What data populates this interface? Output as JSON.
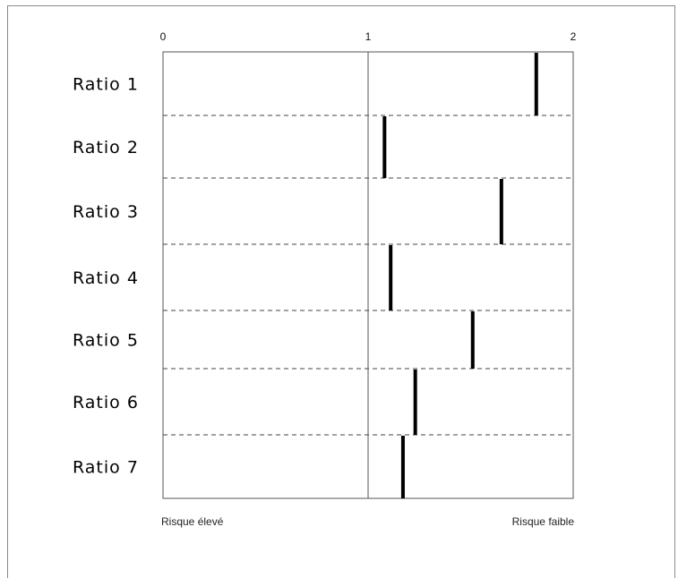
{
  "chart_data": {
    "type": "scatter",
    "title": "",
    "xlabel": "",
    "ylabel": "",
    "xlim": [
      0,
      2
    ],
    "x_ticks": [
      "0",
      "1",
      "2"
    ],
    "x_tick_values": [
      0,
      1,
      2
    ],
    "annotations": {
      "left": "Risque élevé",
      "right": "Risque faible"
    },
    "categories": [
      "Ratio 1",
      "Ratio 2",
      "Ratio 3",
      "Ratio 4",
      "Ratio 5",
      "Ratio 6",
      "Ratio 7"
    ],
    "values": [
      1.82,
      1.08,
      1.65,
      1.11,
      1.51,
      1.23,
      1.17
    ],
    "grid": "dashed row separators, solid reference line at 1",
    "legend": "none"
  }
}
